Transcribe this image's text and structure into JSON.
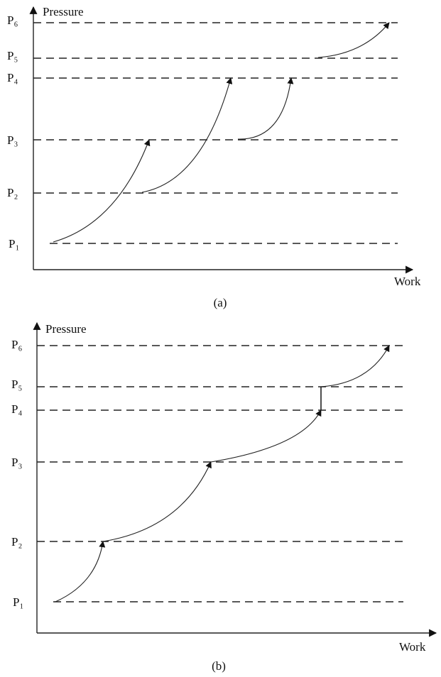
{
  "panels": [
    {
      "y_label": "Pressure",
      "x_label": "Work",
      "caption": "(a)",
      "levels": [
        "P₁",
        "P₂",
        "P₃",
        "P₄",
        "P₅",
        "P₆"
      ]
    },
    {
      "y_label": "Pressure",
      "x_label": "Work",
      "caption": "(b)",
      "levels": [
        "P₁",
        "P₂",
        "P₃",
        "P₄",
        "P₅",
        "P₆"
      ]
    }
  ]
}
